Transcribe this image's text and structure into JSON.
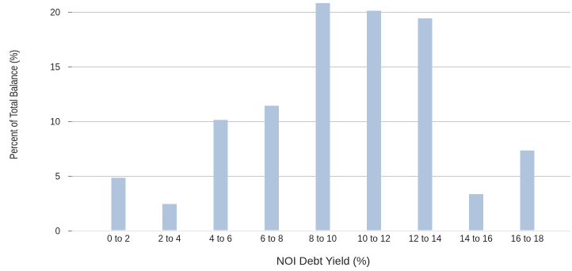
{
  "chart_data": {
    "type": "bar",
    "title": "",
    "xlabel": "NOI Debt Yield (%)",
    "ylabel": "Percent of Total Balance (%)",
    "categories": [
      "0 to 2",
      "2 to 4",
      "4 to 6",
      "6 to 8",
      "8 to 10",
      "10 to 12",
      "12 to 14",
      "14 to 16",
      "16 to 18"
    ],
    "values": [
      4.8,
      2.4,
      10.1,
      11.4,
      20.8,
      20.1,
      19.4,
      3.3,
      7.3
    ],
    "yticks": [
      0,
      5,
      10,
      15,
      20
    ],
    "ylim": [
      0,
      21
    ],
    "grid": true,
    "legend": "none",
    "bar_color": "#b0c4de"
  }
}
